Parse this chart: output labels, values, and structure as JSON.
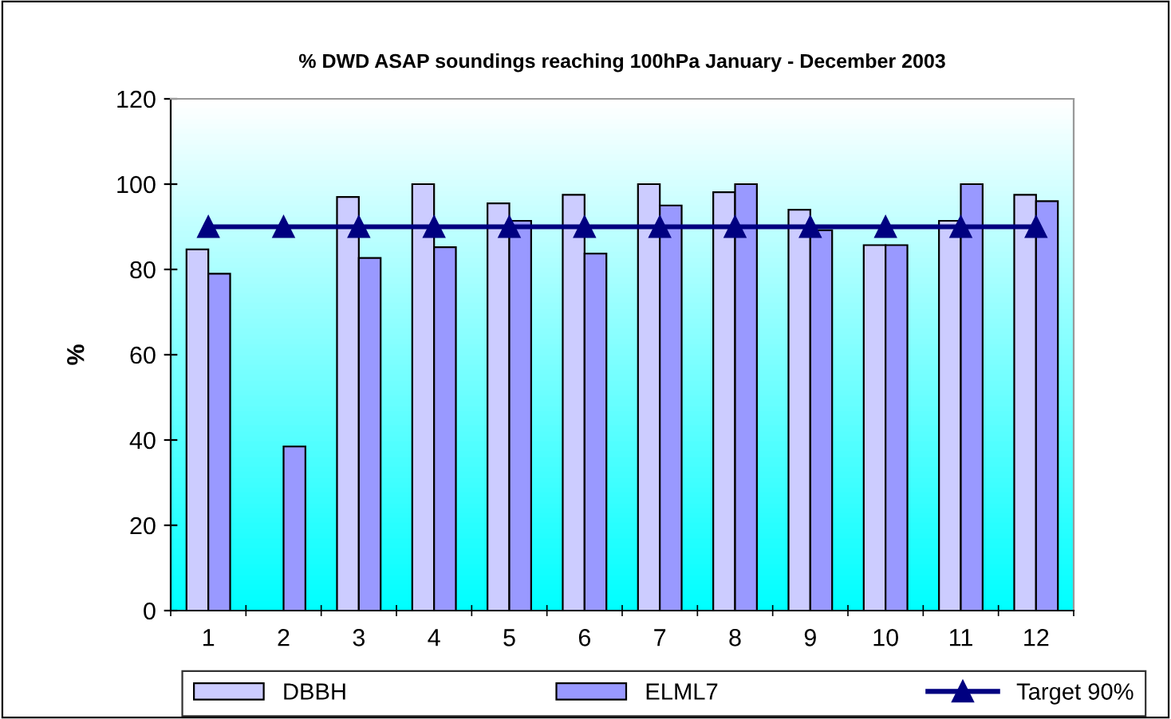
{
  "chart_data": {
    "type": "bar",
    "title": "% DWD ASAP soundings reaching 100hPa January - December 2003",
    "ylabel": "%",
    "categories": [
      "1",
      "2",
      "3",
      "4",
      "5",
      "6",
      "7",
      "8",
      "9",
      "10",
      "11",
      "12"
    ],
    "series": [
      {
        "name": "DBBH",
        "color": "#ccccff",
        "values": [
          84.7,
          null,
          97.0,
          100,
          95.5,
          97.5,
          100,
          98.1,
          94.0,
          85.7,
          91.4,
          97.5
        ]
      },
      {
        "name": "ELML7",
        "color": "#9999ff",
        "values": [
          79.0,
          38.5,
          82.7,
          85.2,
          91.4,
          83.7,
          95.0,
          100,
          89.2,
          85.7,
          100,
          96.0
        ]
      },
      {
        "name": "Target 90%",
        "type": "line",
        "color": "#000080",
        "marker": "triangle",
        "values": [
          90,
          90,
          90,
          90,
          90,
          90,
          90,
          90,
          90,
          90,
          90,
          90
        ]
      }
    ],
    "ylim": [
      0,
      120
    ],
    "yticks": [
      0,
      20,
      40,
      60,
      80,
      100,
      120
    ],
    "grid": false,
    "legend": "bottom"
  }
}
